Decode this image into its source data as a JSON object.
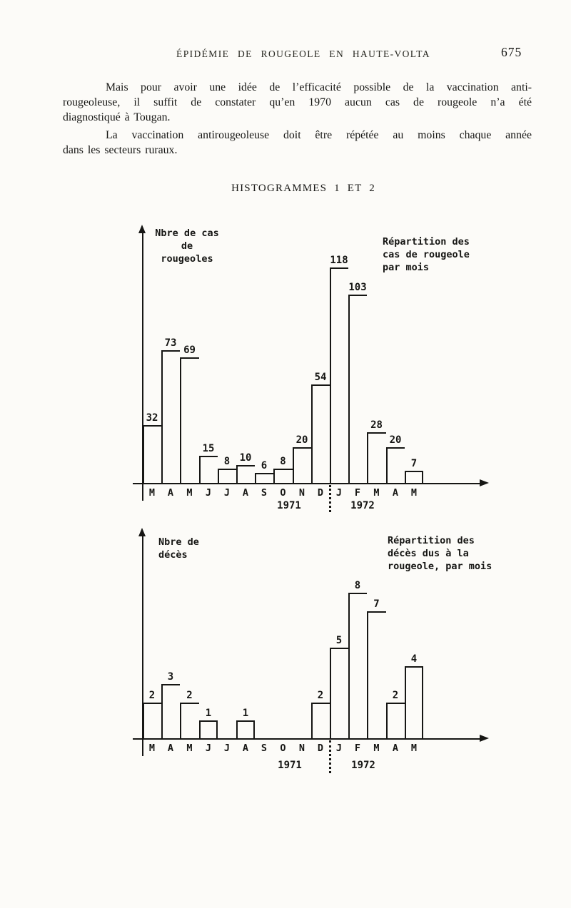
{
  "colors": {
    "ink": "#1d1d1b",
    "paper": "#fcfbf8",
    "chart_line": "#161614"
  },
  "header": {
    "title": "ÉPIDÉMIE DE ROUGEOLE EN HAUTE-VOLTA",
    "page_number": "675"
  },
  "body": {
    "paragraph1": {
      "lines": [
        "Mais pour avoir une idée de l’efficacité possible de la vaccination anti-",
        "rougeoleuse, il suffit de constater qu’en 1970 aucun cas de rougeole n’a été",
        "diagnostiqué à Tougan."
      ]
    },
    "paragraph2": {
      "lines": [
        "La vaccination antirougeoleuse doit être répétée au moins chaque année",
        "dans les secteurs ruraux."
      ]
    },
    "figure_heading": "HISTOGRAMMES 1 ET 2"
  },
  "chart_data": [
    {
      "type": "bar",
      "title": "Répartition des cas de rougeole par mois",
      "legend_lines": [
        "Répartition des",
        "cas de rougeole",
        "par mois"
      ],
      "ylabel": "Nbre de cas de rougeoles",
      "ylabel_lines": [
        "Nbre de cas",
        "de",
        "rougeoles"
      ],
      "xlabel": "",
      "categories": [
        "M",
        "A",
        "M",
        "J",
        "J",
        "A",
        "S",
        "O",
        "N",
        "D",
        "J",
        "F",
        "M",
        "A",
        "M"
      ],
      "values": [
        32,
        73,
        69,
        15,
        8,
        10,
        6,
        8,
        20,
        54,
        118,
        103,
        28,
        20,
        7
      ],
      "year_labels": [
        "1971",
        "1972"
      ],
      "divider_after_index": 9,
      "ylim": [
        0,
        125
      ],
      "grid": false,
      "legend_position": "top-right",
      "bar_style": "outline"
    },
    {
      "type": "bar",
      "title": "Répartition des décès dus à la rougeole, par mois",
      "legend_lines": [
        "Répartition des",
        "décès dus à la",
        "rougeole, par mois"
      ],
      "ylabel": "Nbre de décès",
      "ylabel_lines": [
        "Nbre de",
        "décès"
      ],
      "xlabel": "",
      "categories": [
        "M",
        "A",
        "M",
        "J",
        "J",
        "A",
        "S",
        "O",
        "N",
        "D",
        "J",
        "F",
        "M",
        "A",
        "M"
      ],
      "values": [
        2,
        3,
        2,
        1,
        0,
        1,
        0,
        0,
        0,
        2,
        5,
        8,
        7,
        2,
        4
      ],
      "year_labels": [
        "1971",
        "1972"
      ],
      "divider_after_index": 9,
      "ylim": [
        0,
        9
      ],
      "grid": false,
      "legend_position": "top-right",
      "bar_style": "outline"
    }
  ]
}
